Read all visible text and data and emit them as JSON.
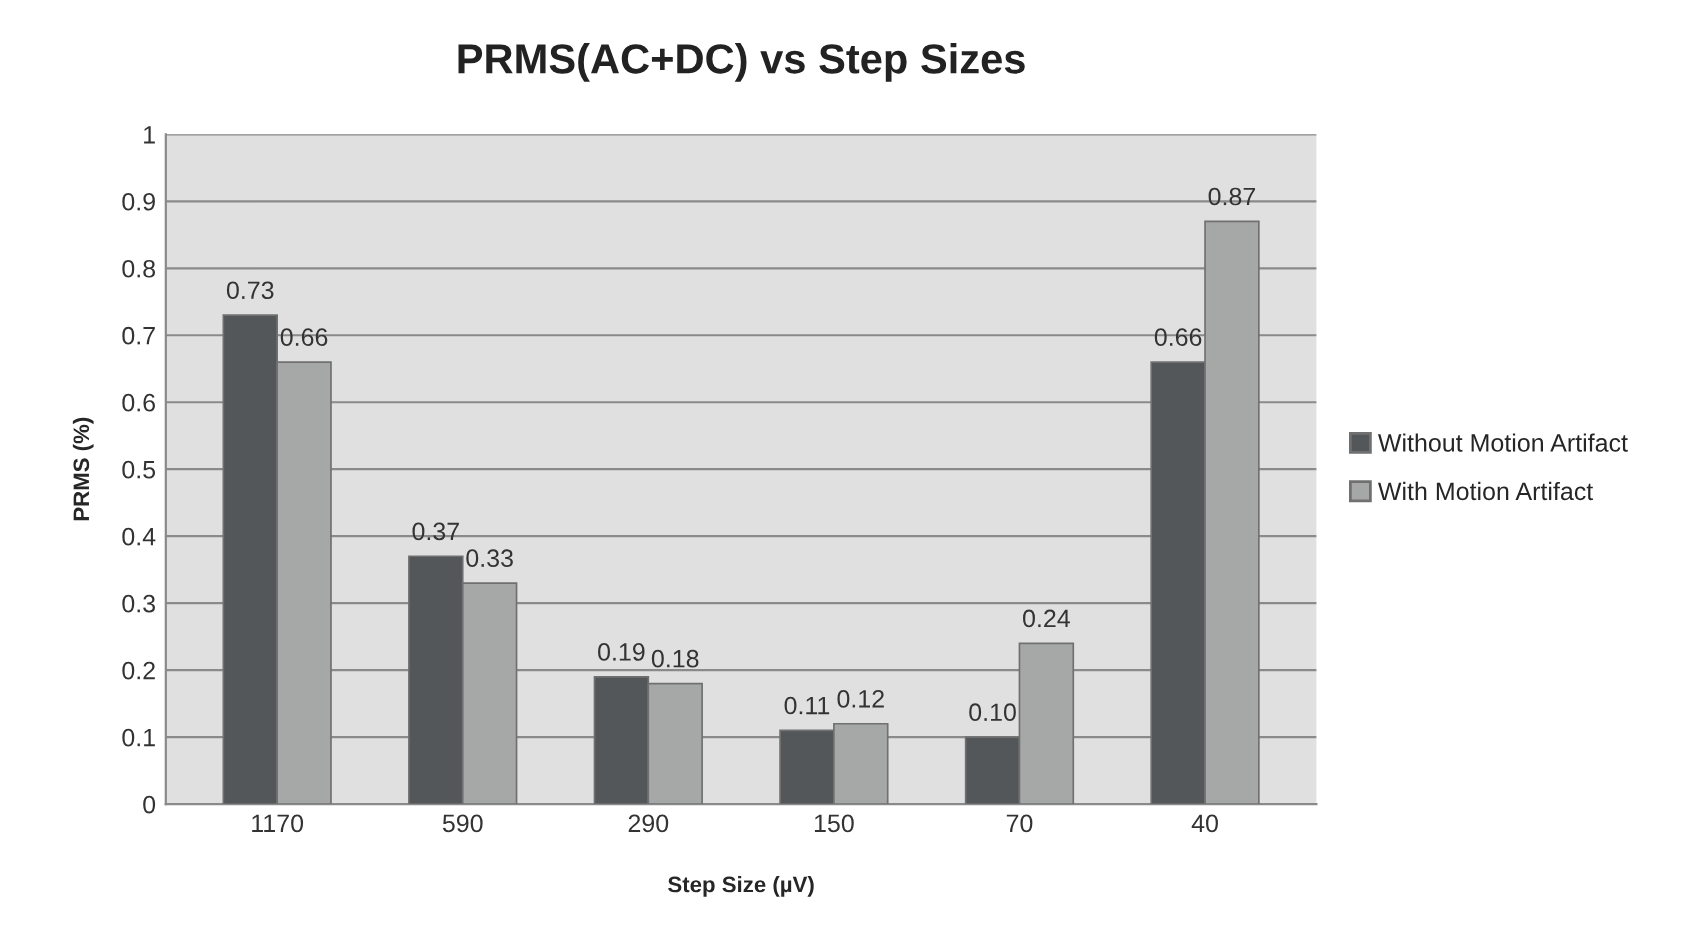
{
  "chart_data": {
    "type": "bar",
    "title": "PRMS(AC+DC) vs Step Sizes",
    "xlabel": "Step Size (µV)",
    "ylabel": "PRMS (%)",
    "categories": [
      "1170",
      "590",
      "290",
      "150",
      "70",
      "40"
    ],
    "series": [
      {
        "name": "Without Motion Artifact",
        "color": "#545759",
        "values": [
          0.73,
          0.37,
          0.19,
          0.11,
          0.1,
          0.66
        ],
        "value_labels": [
          "0.73",
          "0.37",
          "0.19",
          "0.11",
          "0.10",
          "0.66"
        ]
      },
      {
        "name": "With Motion Artifact",
        "color": "#a6a8a8",
        "values": [
          0.66,
          0.33,
          0.18,
          0.12,
          0.24,
          0.87
        ],
        "value_labels": [
          "0.66",
          "0.33",
          "0.18",
          "0.12",
          "0.24",
          "0.87"
        ]
      }
    ],
    "ylim": [
      0,
      1
    ],
    "yticks": [
      0,
      0.1,
      0.2,
      0.3,
      0.4,
      0.5,
      0.6,
      0.7,
      0.8,
      0.9,
      1
    ],
    "grid": "y",
    "legend": "right"
  }
}
